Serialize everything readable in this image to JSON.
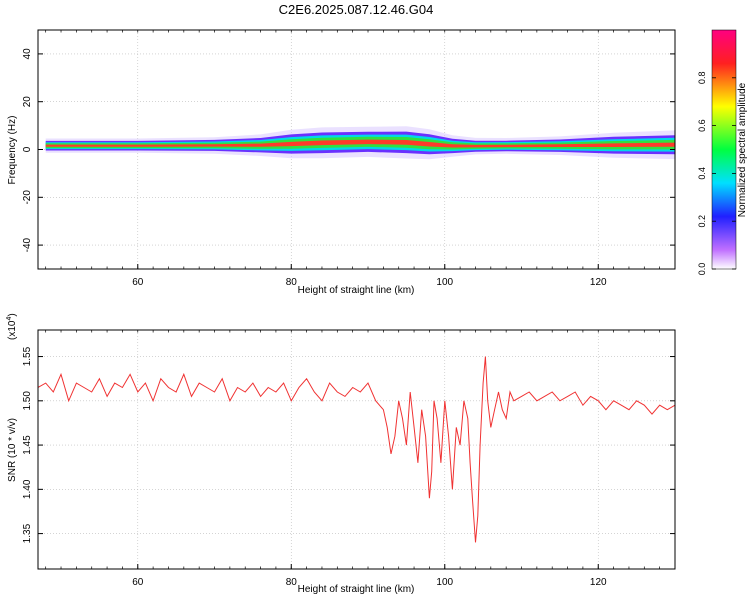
{
  "title": "C2E6.2025.087.12.46.G04",
  "chart_data": [
    {
      "type": "heatmap",
      "xlabel": "Height of straight line (km)",
      "ylabel": "Frequency (Hz)",
      "xlim": [
        47,
        130
      ],
      "ylim": [
        -50,
        50
      ],
      "xticks": [
        60,
        80,
        100,
        120
      ],
      "yticks": [
        40,
        20,
        0,
        -20,
        -40
      ],
      "grid": true,
      "band": [
        {
          "x": 48,
          "center": 1.6,
          "half_width": 2.0
        },
        {
          "x": 60,
          "center": 1.6,
          "half_width": 2.0
        },
        {
          "x": 70,
          "center": 1.7,
          "half_width": 2.3
        },
        {
          "x": 76,
          "center": 1.8,
          "half_width": 3.0
        },
        {
          "x": 80,
          "center": 2.3,
          "half_width": 4.0
        },
        {
          "x": 84,
          "center": 2.8,
          "half_width": 4.3
        },
        {
          "x": 90,
          "center": 3.2,
          "half_width": 4.2
        },
        {
          "x": 95,
          "center": 3.0,
          "half_width": 4.5
        },
        {
          "x": 98,
          "center": 2.2,
          "half_width": 4.2
        },
        {
          "x": 101,
          "center": 1.5,
          "half_width": 3.0
        },
        {
          "x": 104,
          "center": 1.4,
          "half_width": 2.3
        },
        {
          "x": 108,
          "center": 1.5,
          "half_width": 2.2
        },
        {
          "x": 115,
          "center": 1.6,
          "half_width": 2.6
        },
        {
          "x": 122,
          "center": 1.8,
          "half_width": 3.5
        },
        {
          "x": 130,
          "center": 2.0,
          "half_width": 4.0
        }
      ]
    },
    {
      "type": "line",
      "xlabel": "Height of straight line (km)",
      "ylabel": "SNR (10 * v/v)",
      "multiplier_label": "(x10",
      "multiplier_exp": "4",
      "xlim": [
        47,
        130
      ],
      "ylim": [
        1.31,
        1.58
      ],
      "xticks": [
        60,
        80,
        100,
        120
      ],
      "yticks": [
        1.55,
        1.5,
        1.45,
        1.4,
        1.35
      ],
      "grid": true,
      "series": [
        {
          "color": "#f03232",
          "x": [
            47,
            48,
            49,
            50,
            51,
            52,
            53,
            54,
            55,
            56,
            57,
            58,
            59,
            60,
            61,
            62,
            63,
            64,
            65,
            66,
            67,
            68,
            69,
            70,
            71,
            72,
            73,
            74,
            75,
            76,
            77,
            78,
            79,
            80,
            81,
            82,
            83,
            84,
            85,
            86,
            87,
            88,
            89,
            90,
            91,
            92,
            92.5,
            93,
            93.5,
            94,
            94.5,
            95,
            95.5,
            96,
            96.5,
            97,
            97.5,
            98,
            98.3,
            98.6,
            99,
            99.5,
            100,
            100.5,
            101,
            101.5,
            102,
            102.5,
            103,
            103.3,
            103.6,
            104,
            104.3,
            104.6,
            105,
            105.3,
            105.6,
            106,
            106.5,
            107,
            107.5,
            108,
            108.5,
            109,
            110,
            111,
            112,
            113,
            114,
            115,
            116,
            117,
            118,
            119,
            120,
            121,
            122,
            123,
            124,
            125,
            126,
            127,
            128,
            129,
            130
          ],
          "y": [
            1.515,
            1.52,
            1.51,
            1.53,
            1.5,
            1.52,
            1.515,
            1.51,
            1.525,
            1.505,
            1.52,
            1.515,
            1.53,
            1.51,
            1.52,
            1.5,
            1.525,
            1.515,
            1.51,
            1.53,
            1.505,
            1.52,
            1.515,
            1.51,
            1.525,
            1.5,
            1.515,
            1.51,
            1.52,
            1.505,
            1.515,
            1.51,
            1.52,
            1.5,
            1.515,
            1.525,
            1.51,
            1.5,
            1.52,
            1.51,
            1.505,
            1.515,
            1.51,
            1.52,
            1.5,
            1.49,
            1.47,
            1.44,
            1.46,
            1.5,
            1.48,
            1.45,
            1.51,
            1.47,
            1.43,
            1.49,
            1.46,
            1.39,
            1.42,
            1.5,
            1.48,
            1.43,
            1.5,
            1.46,
            1.4,
            1.47,
            1.45,
            1.5,
            1.48,
            1.43,
            1.39,
            1.34,
            1.37,
            1.45,
            1.52,
            1.55,
            1.5,
            1.47,
            1.49,
            1.51,
            1.49,
            1.48,
            1.51,
            1.5,
            1.505,
            1.51,
            1.5,
            1.505,
            1.51,
            1.5,
            1.505,
            1.51,
            1.495,
            1.505,
            1.5,
            1.49,
            1.5,
            1.495,
            1.49,
            1.5,
            1.495,
            1.485,
            1.495,
            1.49,
            1.495
          ]
        }
      ]
    }
  ],
  "colorbar": {
    "label": "Normalized spectral amplitude",
    "ticks": [
      0.0,
      0.2,
      0.4,
      0.6,
      0.8
    ],
    "tick_labels": [
      "0.0",
      "0.2",
      "0.4",
      "0.6",
      "0.8"
    ],
    "range": [
      0,
      1
    ],
    "colors": [
      "#ffffff",
      "#c070ff",
      "#2020ff",
      "#00e0ff",
      "#00ff40",
      "#ffff00",
      "#ff2020",
      "#ff0080"
    ]
  }
}
